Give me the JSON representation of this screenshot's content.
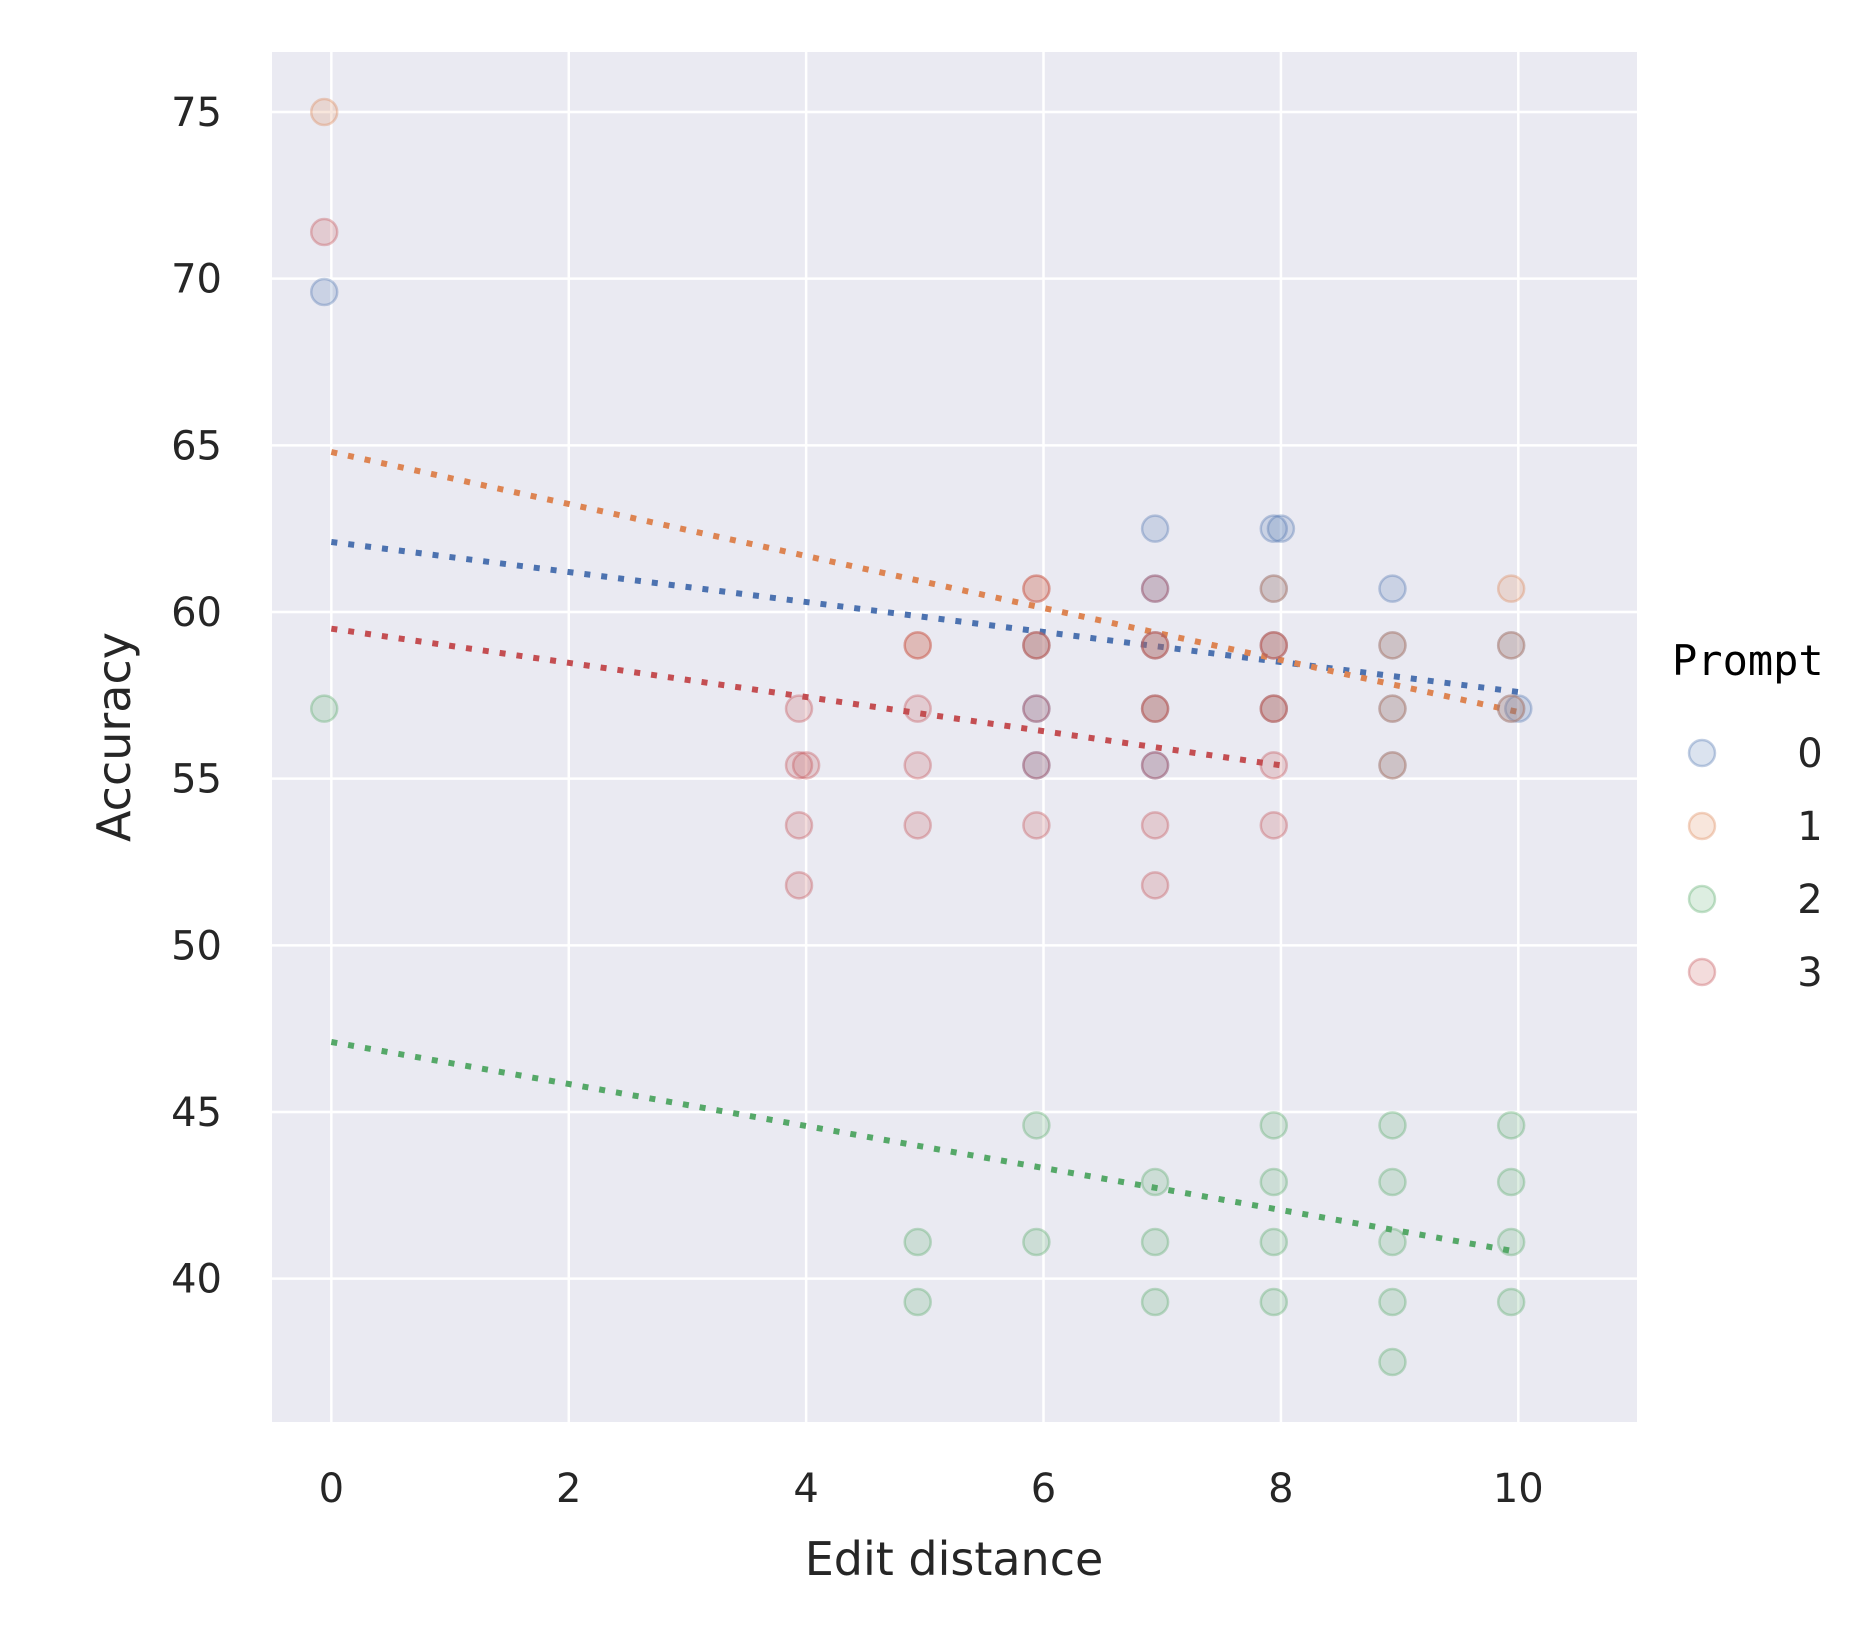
{
  "chart_data": {
    "type": "scatter",
    "title": "",
    "xlabel": "Edit distance",
    "ylabel": "Accuracy",
    "xlim": [
      -0.5,
      11
    ],
    "ylim": [
      35.7,
      76.8
    ],
    "xticks": [
      0,
      2,
      4,
      6,
      8,
      10
    ],
    "yticks": [
      40,
      45,
      50,
      55,
      60,
      65,
      70,
      75
    ],
    "grid": true,
    "background": "#eaeaf2",
    "legend": {
      "title": "Prompt",
      "placement": "right"
    },
    "series": [
      {
        "name": "0",
        "color": "#4c72b0",
        "points": [
          [
            0,
            69.6
          ],
          [
            6,
            57.1
          ],
          [
            6,
            55.4
          ],
          [
            6,
            59.0
          ],
          [
            7,
            62.5
          ],
          [
            7,
            60.7
          ],
          [
            7,
            59.0
          ],
          [
            7,
            57.1
          ],
          [
            7,
            55.4
          ],
          [
            8,
            62.5
          ],
          [
            8,
            62.5
          ],
          [
            8,
            60.7
          ],
          [
            8,
            59.0
          ],
          [
            8,
            57.1
          ],
          [
            9,
            60.7
          ],
          [
            9,
            59.0
          ],
          [
            9,
            57.1
          ],
          [
            9,
            55.4
          ],
          [
            10,
            59.0
          ],
          [
            10,
            57.1
          ],
          [
            10,
            57.1
          ]
        ],
        "trend": {
          "x": [
            0,
            10
          ],
          "y": [
            62.1,
            57.6
          ]
        }
      },
      {
        "name": "1",
        "color": "#dd8452",
        "points": [
          [
            0,
            75.0
          ],
          [
            5,
            59.0
          ],
          [
            6,
            60.7
          ],
          [
            6,
            59.0
          ],
          [
            7,
            59.0
          ],
          [
            7,
            57.1
          ],
          [
            8,
            60.7
          ],
          [
            8,
            59.0
          ],
          [
            8,
            57.1
          ],
          [
            9,
            59.0
          ],
          [
            9,
            57.1
          ],
          [
            9,
            55.4
          ],
          [
            10,
            60.7
          ],
          [
            10,
            59.0
          ],
          [
            10,
            57.1
          ]
        ],
        "trend": {
          "x": [
            0,
            10
          ],
          "y": [
            64.8,
            57.0
          ]
        }
      },
      {
        "name": "2",
        "color": "#55a868",
        "points": [
          [
            0,
            57.1
          ],
          [
            5,
            41.1
          ],
          [
            5,
            39.3
          ],
          [
            6,
            44.6
          ],
          [
            6,
            41.1
          ],
          [
            7,
            42.9
          ],
          [
            7,
            41.1
          ],
          [
            7,
            39.3
          ],
          [
            8,
            44.6
          ],
          [
            8,
            42.9
          ],
          [
            8,
            41.1
          ],
          [
            8,
            39.3
          ],
          [
            9,
            44.6
          ],
          [
            9,
            42.9
          ],
          [
            9,
            41.1
          ],
          [
            9,
            39.3
          ],
          [
            9,
            37.5
          ],
          [
            10,
            44.6
          ],
          [
            10,
            42.9
          ],
          [
            10,
            41.1
          ],
          [
            10,
            39.3
          ]
        ],
        "trend": {
          "x": [
            0,
            10
          ],
          "y": [
            47.1,
            40.8
          ]
        }
      },
      {
        "name": "3",
        "color": "#c44e52",
        "points": [
          [
            0,
            71.4
          ],
          [
            4,
            57.1
          ],
          [
            4,
            55.4
          ],
          [
            4,
            55.4
          ],
          [
            4,
            53.6
          ],
          [
            4,
            51.8
          ],
          [
            5,
            59.0
          ],
          [
            5,
            57.1
          ],
          [
            5,
            55.4
          ],
          [
            5,
            53.6
          ],
          [
            6,
            60.7
          ],
          [
            6,
            59.0
          ],
          [
            6,
            57.1
          ],
          [
            6,
            55.4
          ],
          [
            6,
            53.6
          ],
          [
            7,
            60.7
          ],
          [
            7,
            59.0
          ],
          [
            7,
            57.1
          ],
          [
            7,
            55.4
          ],
          [
            7,
            53.6
          ],
          [
            7,
            51.8
          ],
          [
            8,
            59.0
          ],
          [
            8,
            57.1
          ],
          [
            8,
            55.4
          ],
          [
            8,
            53.6
          ]
        ],
        "trend": {
          "x": [
            0,
            8
          ],
          "y": [
            59.5,
            55.4
          ]
        }
      }
    ]
  }
}
